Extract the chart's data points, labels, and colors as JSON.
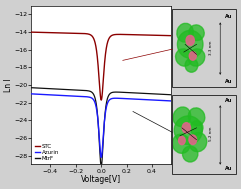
{
  "title": "",
  "xlabel": "Voltage[V]",
  "ylabel": "Ln I",
  "xlim": [
    -0.55,
    0.55
  ],
  "ylim": [
    -29,
    -11
  ],
  "yticks": [
    -28,
    -26,
    -24,
    -22,
    -20,
    -18,
    -16,
    -14,
    -12
  ],
  "xticks": [
    -0.4,
    -0.2,
    0.0,
    0.2,
    0.4
  ],
  "bg_color": "#d0d0d0",
  "plot_bg_color": "#ffffff",
  "stc_color": "#8b0000",
  "azurin_color": "#1a1aff",
  "mtrf_color": "#111111",
  "legend_labels": [
    "STC",
    "Azurin",
    "MtrF"
  ],
  "inset1_text": "3.3 nm",
  "inset2_text": "5.2 nm",
  "inset_bg": "#f0e020",
  "inset_border": "#333333",
  "protein_green": "#22bb22",
  "protein_pink": "#dd6688"
}
